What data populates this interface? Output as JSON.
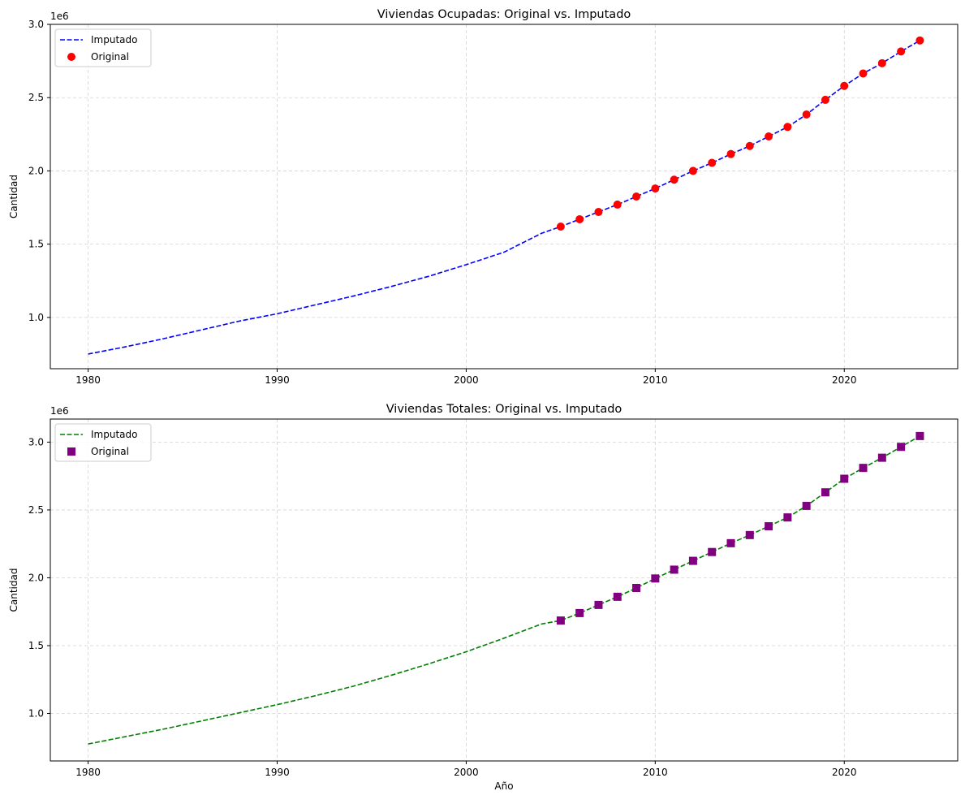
{
  "chart_data": [
    {
      "type": "line",
      "title": "Viviendas Ocupadas: Original vs. Imputado",
      "xlabel": "",
      "ylabel": "Cantidad",
      "offset_text": "1e6",
      "xlim": [
        1978,
        2026
      ],
      "ylim": [
        0.65,
        3.0
      ],
      "xticks": [
        1980,
        1990,
        2000,
        2010,
        2020
      ],
      "yticks": [
        1.0,
        1.5,
        2.0,
        2.5,
        3.0
      ],
      "ytick_labels": [
        "1.0",
        "1.5",
        "2.0",
        "2.5",
        "3.0"
      ],
      "grid": true,
      "legend_position": "upper-left",
      "series": [
        {
          "name": "Imputado",
          "style": "dashed-line",
          "color": "#0000ff",
          "x": [
            1980,
            1982,
            1984,
            1986,
            1988,
            1990,
            1992,
            1994,
            1996,
            1998,
            2000,
            2002,
            2004,
            2005,
            2006,
            2007,
            2008,
            2009,
            2010,
            2011,
            2012,
            2013,
            2014,
            2015,
            2016,
            2017,
            2018,
            2019,
            2020,
            2021,
            2022,
            2023,
            2024
          ],
          "y": [
            0.75,
            0.8,
            0.855,
            0.915,
            0.975,
            1.025,
            1.085,
            1.145,
            1.21,
            1.28,
            1.36,
            1.445,
            1.575,
            1.62,
            1.67,
            1.72,
            1.77,
            1.825,
            1.88,
            1.94,
            2.0,
            2.055,
            2.115,
            2.17,
            2.235,
            2.3,
            2.385,
            2.485,
            2.58,
            2.665,
            2.735,
            2.815,
            2.89
          ]
        },
        {
          "name": "Original",
          "style": "circle-markers",
          "color": "#ff0000",
          "x": [
            2005,
            2006,
            2007,
            2008,
            2009,
            2010,
            2011,
            2012,
            2013,
            2014,
            2015,
            2016,
            2017,
            2018,
            2019,
            2020,
            2021,
            2022,
            2023,
            2024
          ],
          "y": [
            1.62,
            1.67,
            1.72,
            1.77,
            1.825,
            1.88,
            1.94,
            2.0,
            2.055,
            2.115,
            2.17,
            2.235,
            2.3,
            2.385,
            2.485,
            2.58,
            2.665,
            2.735,
            2.815,
            2.89
          ]
        }
      ]
    },
    {
      "type": "line",
      "title": "Viviendas Totales: Original vs. Imputado",
      "xlabel": "Año",
      "ylabel": "Cantidad",
      "offset_text": "1e6",
      "xlim": [
        1978,
        2026
      ],
      "ylim": [
        0.65,
        3.17
      ],
      "xticks": [
        1980,
        1990,
        2000,
        2010,
        2020
      ],
      "yticks": [
        1.0,
        1.5,
        2.0,
        2.5,
        3.0
      ],
      "ytick_labels": [
        "1.0",
        "1.5",
        "2.0",
        "2.5",
        "3.0"
      ],
      "grid": true,
      "legend_position": "upper-left",
      "series": [
        {
          "name": "Imputado",
          "style": "dashed-line",
          "color": "#008000",
          "x": [
            1980,
            1982,
            1984,
            1986,
            1988,
            1990,
            1992,
            1994,
            1996,
            1998,
            2000,
            2002,
            2004,
            2005,
            2006,
            2007,
            2008,
            2009,
            2010,
            2011,
            2012,
            2013,
            2014,
            2015,
            2016,
            2017,
            2018,
            2019,
            2020,
            2021,
            2022,
            2023,
            2024
          ],
          "y": [
            0.775,
            0.83,
            0.885,
            0.945,
            1.005,
            1.065,
            1.13,
            1.2,
            1.28,
            1.365,
            1.455,
            1.555,
            1.66,
            1.685,
            1.74,
            1.8,
            1.86,
            1.925,
            1.995,
            2.06,
            2.125,
            2.19,
            2.255,
            2.315,
            2.38,
            2.445,
            2.53,
            2.63,
            2.73,
            2.81,
            2.885,
            2.965,
            3.045
          ]
        },
        {
          "name": "Original",
          "style": "square-markers",
          "color": "#800080",
          "x": [
            2005,
            2006,
            2007,
            2008,
            2009,
            2010,
            2011,
            2012,
            2013,
            2014,
            2015,
            2016,
            2017,
            2018,
            2019,
            2020,
            2021,
            2022,
            2023,
            2024
          ],
          "y": [
            1.685,
            1.74,
            1.8,
            1.86,
            1.925,
            1.995,
            2.06,
            2.125,
            2.19,
            2.255,
            2.315,
            2.38,
            2.445,
            2.53,
            2.63,
            2.73,
            2.81,
            2.885,
            2.965,
            3.045
          ]
        }
      ]
    }
  ]
}
